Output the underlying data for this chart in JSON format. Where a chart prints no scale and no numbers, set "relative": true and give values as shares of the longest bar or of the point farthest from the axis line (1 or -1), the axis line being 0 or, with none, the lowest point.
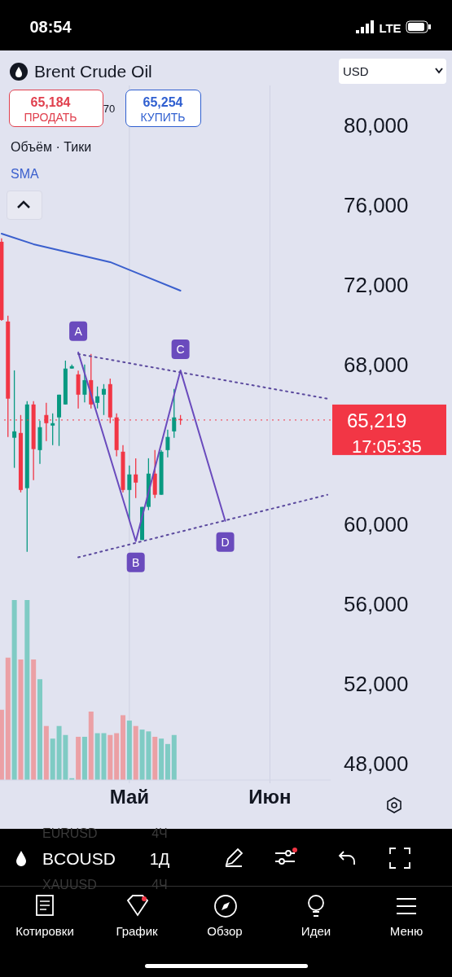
{
  "chart_data": [
    {
      "type": "candlestick",
      "title": "Brent Crude Oil",
      "categories": [
        null,
        null,
        null,
        null,
        null,
        null,
        null,
        null,
        null,
        null,
        null,
        null,
        null,
        null,
        null,
        null,
        null,
        null,
        null,
        null,
        "Май",
        null,
        null,
        null,
        null,
        null,
        null,
        null,
        null,
        null,
        null,
        null,
        null,
        null,
        null,
        null,
        null,
        null,
        null,
        null,
        null,
        null,
        "Июн",
        null,
        null,
        null,
        null,
        null,
        null,
        null,
        null,
        null
      ],
      "ohlc": [
        [
          74160,
          74330,
          70200,
          70240
        ],
        [
          70160,
          70450,
          64370,
          66290
        ],
        [
          64330,
          67710,
          62820,
          64650
        ],
        [
          64570,
          65470,
          61590,
          61710
        ],
        [
          61800,
          66160,
          58610,
          66000
        ],
        [
          66000,
          66160,
          62200,
          63760
        ],
        [
          63710,
          65180,
          63020,
          64860
        ],
        [
          65470,
          66080,
          64160,
          65060
        ],
        [
          64940,
          65550,
          63960,
          65060
        ],
        [
          65350,
          66490,
          63920,
          66490
        ],
        [
          66000,
          68200,
          66000,
          67800
        ],
        [
          67800,
          68000,
          67800,
          67920
        ],
        [
          67510,
          67700,
          65800,
          66490
        ],
        [
          66490,
          68000,
          66100,
          67220
        ],
        [
          67220,
          68530,
          65800,
          66000
        ],
        [
          66080,
          66900,
          65800,
          66410
        ],
        [
          66490,
          67020,
          65470,
          66780
        ],
        [
          67020,
          67300,
          65060,
          65350
        ],
        [
          65350,
          65550,
          63400,
          63710
        ],
        [
          63630,
          63960,
          61590,
          61710
        ],
        [
          61710,
          62940,
          60160,
          62490
        ],
        [
          62490,
          63300,
          61300,
          62080
        ],
        [
          59200,
          60860,
          59200,
          60860
        ],
        [
          60860,
          63300,
          60700,
          62530
        ],
        [
          62530,
          63710,
          61300,
          61470
        ],
        [
          61470,
          63710,
          61470,
          63630
        ],
        [
          63710,
          64730,
          63350,
          64370
        ],
        [
          64650,
          66780,
          64330,
          65350
        ],
        [
          65270,
          65470,
          64980,
          65220
        ],
        null,
        null,
        null,
        null,
        null,
        null,
        null,
        null,
        null,
        null,
        null,
        null,
        null,
        null,
        null,
        null,
        null,
        null,
        null,
        null,
        null,
        null,
        null
      ],
      "series": [
        {
          "type": "line",
          "name": "SMA",
          "color": "#3a5fcd",
          "values": [
            74570,
            null,
            null,
            null,
            null,
            74040,
            null,
            null,
            null,
            null,
            null,
            null,
            null,
            null,
            null,
            null,
            null,
            73140,
            null,
            null,
            null,
            null,
            72490,
            null,
            null,
            null,
            null,
            null,
            71710,
            null,
            null,
            null,
            null,
            null,
            null,
            null,
            null,
            null,
            null,
            null,
            null,
            null,
            null,
            null,
            null,
            null,
            null,
            null,
            null,
            null,
            null,
            null
          ]
        },
        {
          "type": "line",
          "color": "#6a4bbd",
          "line_style": "solid",
          "values": [
            null,
            null,
            null,
            null,
            null,
            null,
            null,
            null,
            null,
            null,
            null,
            null,
            68610,
            null,
            null,
            null,
            null,
            null,
            null,
            null,
            null,
            59140,
            null,
            null,
            null,
            null,
            null,
            null,
            67710,
            null,
            null,
            null,
            null,
            null,
            null,
            60160,
            null,
            null,
            null,
            null,
            null,
            null,
            null,
            null,
            null,
            null,
            null,
            null,
            null,
            null,
            null,
            null
          ],
          "value_labels": [
            null,
            null,
            null,
            null,
            null,
            null,
            null,
            null,
            null,
            null,
            null,
            null,
            "A",
            null,
            null,
            null,
            null,
            null,
            null,
            null,
            null,
            "B",
            null,
            null,
            null,
            null,
            null,
            null,
            "C",
            null,
            null,
            null,
            null,
            null,
            null,
            "D",
            null,
            null,
            null,
            null,
            null,
            null,
            null,
            null,
            null,
            null,
            null,
            null,
            null,
            null,
            null,
            null
          ]
        },
        {
          "type": "line",
          "color": "#5b4a9e",
          "line_style": "dotted",
          "values": [
            null,
            null,
            null,
            null,
            null,
            null,
            null,
            null,
            null,
            null,
            null,
            null,
            68530,
            null,
            null,
            null,
            null,
            null,
            null,
            null,
            null,
            null,
            null,
            null,
            null,
            null,
            null,
            null,
            null,
            null,
            null,
            null,
            null,
            null,
            null,
            null,
            null,
            null,
            null,
            null,
            null,
            null,
            null,
            null,
            null,
            null,
            null,
            null,
            null,
            null,
            null,
            66290
          ]
        },
        {
          "type": "line",
          "color": "#5b4a9e",
          "line_style": "dotted",
          "values": [
            null,
            null,
            null,
            null,
            null,
            null,
            null,
            null,
            null,
            null,
            null,
            null,
            58330,
            null,
            null,
            null,
            null,
            null,
            null,
            null,
            null,
            null,
            null,
            null,
            null,
            null,
            null,
            null,
            null,
            null,
            null,
            null,
            null,
            null,
            null,
            null,
            null,
            null,
            null,
            null,
            null,
            null,
            null,
            null,
            null,
            null,
            null,
            null,
            null,
            null,
            null,
            61470
          ]
        }
      ],
      "ylim": [
        47000,
        82000
      ],
      "yticks": [
        {
          "value": 48000,
          "label": "48,000"
        },
        {
          "value": 52000,
          "label": "52,000"
        },
        {
          "value": 56000,
          "label": "56,000"
        },
        {
          "value": 60000,
          "label": "60,000"
        },
        {
          "value": 68000,
          "label": "68,000"
        },
        {
          "value": 72000,
          "label": "72,000"
        },
        {
          "value": 76000,
          "label": "76,000"
        },
        {
          "value": 80000,
          "label": "80,000"
        }
      ],
      "grid": true,
      "legend": false,
      "marker": "none",
      "ref_lines": [
        {
          "axis": "y",
          "value": 65219,
          "label": "65,219",
          "color": "#f23645",
          "line_style": "dotted"
        }
      ],
      "annotations": [
        "08:54",
        "LTE",
        "65,184",
        "ПРОДАТЬ",
        "70",
        "65,254",
        "КУПИТЬ",
        "Объём · Тики",
        "USD",
        "BCOUSD",
        "1Д",
        "EURUSD",
        "4Ч",
        "XAUUSD",
        "4Ч",
        "Котировки",
        "График",
        "Обзор",
        "Идеи",
        "Меню",
        "17:05:35"
      ]
    },
    {
      "type": "bar",
      "relative": true,
      "categories": [
        null,
        null,
        null,
        null,
        null,
        null,
        null,
        null,
        null,
        null,
        null,
        null,
        null,
        null,
        null,
        null,
        null,
        null,
        null,
        null,
        null,
        null,
        null,
        null,
        null,
        null,
        null,
        null,
        null,
        null,
        null,
        null,
        null,
        null,
        null,
        null,
        null,
        null,
        null,
        null,
        null,
        null,
        null,
        null,
        null,
        null,
        null,
        null,
        null,
        null,
        null,
        null
      ],
      "values": [
        0.39,
        0.68,
        1,
        0.67,
        1,
        0.67,
        0.56,
        0.3,
        0.23,
        0.3,
        0.25,
        0.01,
        0.24,
        0.24,
        0.38,
        0.26,
        0.26,
        0.25,
        0.26,
        0.36,
        0.33,
        0.3,
        0.28,
        0.27,
        0.24,
        0.23,
        0.2,
        0.25,
        null,
        null,
        null,
        null,
        null,
        null,
        null,
        null,
        null,
        null,
        null,
        null,
        null,
        null,
        null,
        null,
        null,
        null,
        null,
        null,
        null,
        null,
        null,
        null
      ],
      "colors": [
        "#eba0a5",
        "#eba0a5",
        "#7fcbc4",
        "#eba0a5",
        "#7fcbc4",
        "#eba0a5",
        "#7fcbc4",
        "#eba0a5",
        "#7fcbc4",
        "#7fcbc4",
        "#7fcbc4",
        "#7fcbc4",
        "#eba0a5",
        "#7fcbc4",
        "#eba0a5",
        "#7fcbc4",
        "#7fcbc4",
        "#eba0a5",
        "#eba0a5",
        "#eba0a5",
        "#7fcbc4",
        "#eba0a5",
        "#7fcbc4",
        "#7fcbc4",
        "#eba0a5",
        "#7fcbc4",
        "#7fcbc4",
        "#7fcbc4",
        null,
        null,
        null,
        null,
        null,
        null,
        null,
        null,
        null,
        null,
        null,
        null,
        null,
        null,
        null,
        null,
        null,
        null,
        null,
        null,
        null,
        null,
        null,
        null
      ]
    }
  ]
}
